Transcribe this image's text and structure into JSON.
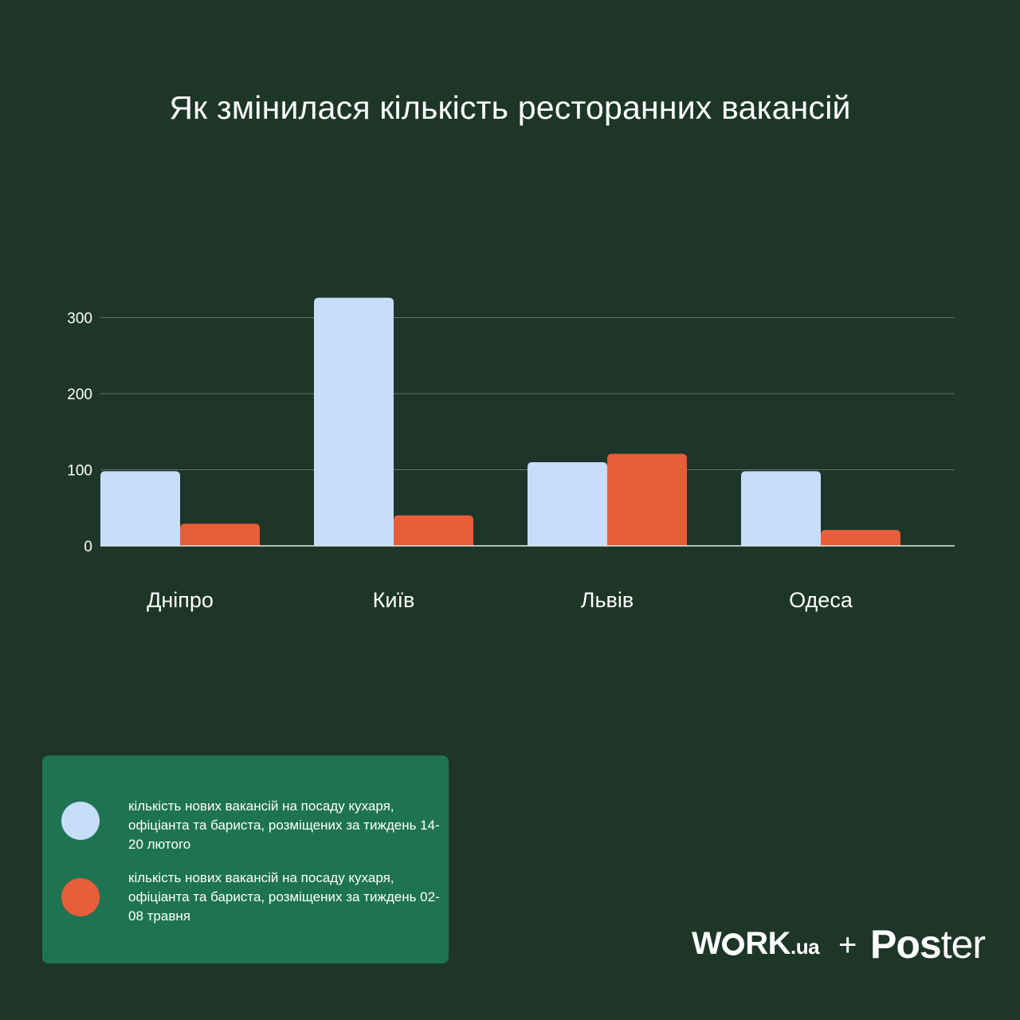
{
  "title": "Як змінилася кількість ресторанних вакансій",
  "colors": {
    "background": "#1e3629",
    "series1": "#c6defa",
    "series2": "#e85d3a",
    "legend_bg": "#1e7452",
    "grid": "#5d7568"
  },
  "chart_data": {
    "type": "bar",
    "categories": [
      "Дніпро",
      "Київ",
      "Львів",
      "Одеса"
    ],
    "series": [
      {
        "name": "кількість нових вакансій на посаду кухаря, офіціанта та бариста, розміщених за тиждень 14-20 лютого",
        "values": [
          98,
          326,
          110,
          98
        ]
      },
      {
        "name": "кількість нових вакансій на посаду кухаря, офіціанта та бариста, розміщених за тиждень 02-08 травня",
        "values": [
          29,
          40,
          121,
          21
        ]
      }
    ],
    "yticks": [
      0,
      100,
      200,
      300
    ],
    "ylim": [
      0,
      300
    ],
    "grid": true,
    "legend_position": "bottom-left"
  },
  "legend": {
    "items": [
      {
        "text": "кількість нових вакансій на посаду кухаря, офіціанта та бариста, розміщених за тиждень 14-20 лютого"
      },
      {
        "text": "кількість нових вакансій на посаду кухаря, офіціанта та бариста, розміщених за тиждень 02-08 травня"
      }
    ]
  },
  "logos": {
    "work_left": "W",
    "work_right": "RK",
    "work_domain": ".ua",
    "plus": "+",
    "poster_bold": "Pos",
    "poster_light": "ter"
  }
}
